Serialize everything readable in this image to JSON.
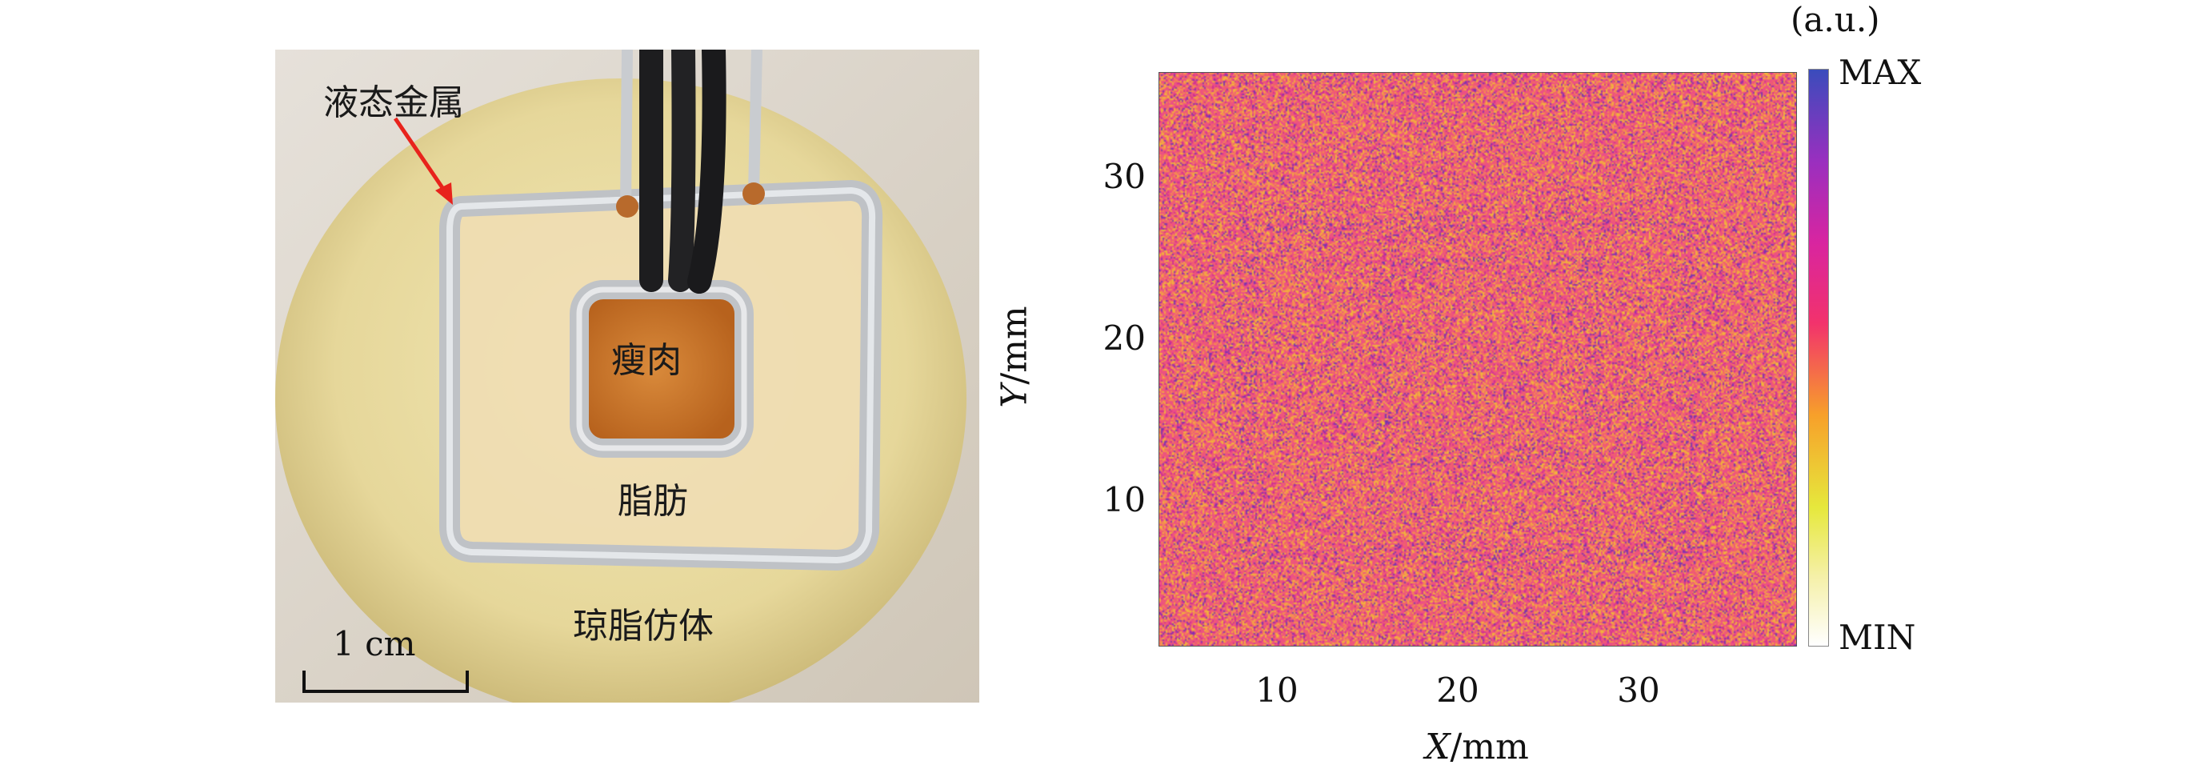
{
  "photo": {
    "labels": {
      "liquid_metal": "液态金属",
      "lean_meat": "瘦肉",
      "fat": "脂肪",
      "agar_phantom": "琼脂仿体"
    },
    "scale_bar": "1 cm"
  },
  "plot": {
    "x_label_var": "X",
    "x_label_unit": "/mm",
    "y_label_var": "Y",
    "y_label_unit": "/mm",
    "x_ticks": [
      "10",
      "20",
      "30"
    ],
    "y_ticks": [
      "10",
      "20",
      "30"
    ],
    "colorbar": {
      "unit": "(a.u.)",
      "max_label": "MAX",
      "min_label": "MIN"
    }
  },
  "colors": {
    "noise_base": "#ec4f86",
    "noise_yellow": "#f2b63a",
    "noise_purple": "#7a33b0",
    "arrow": "#e8231c"
  }
}
